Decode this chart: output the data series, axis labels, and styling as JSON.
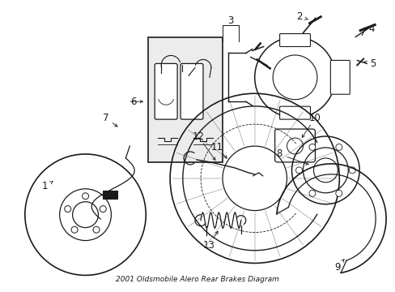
{
  "bg_color": "#ffffff",
  "line_color": "#1a1a1a",
  "fig_width": 4.89,
  "fig_height": 3.6,
  "dpi": 100,
  "font_size": 8.5,
  "title": "2001 Oldsmobile Alero Rear Brakes Diagram"
}
